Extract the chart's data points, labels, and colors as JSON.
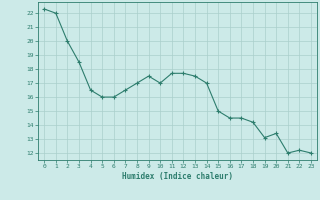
{
  "x": [
    0,
    1,
    2,
    3,
    4,
    5,
    6,
    7,
    8,
    9,
    10,
    11,
    12,
    13,
    14,
    15,
    16,
    17,
    18,
    19,
    20,
    21,
    22,
    23
  ],
  "y": [
    22.3,
    22.0,
    20.0,
    18.5,
    16.5,
    16.0,
    16.0,
    16.5,
    17.0,
    17.5,
    17.0,
    17.7,
    17.7,
    17.5,
    17.0,
    15.0,
    14.5,
    14.5,
    14.2,
    13.1,
    13.4,
    12.0,
    12.2,
    12.0
  ],
  "line_color": "#2d7d6d",
  "marker": "+",
  "marker_size": 3,
  "bg_color": "#cceae8",
  "grid_color": "#aacfcc",
  "xlabel": "Humidex (Indice chaleur)",
  "xlim": [
    -0.5,
    23.5
  ],
  "ylim": [
    11.5,
    22.8
  ],
  "yticks": [
    12,
    13,
    14,
    15,
    16,
    17,
    18,
    19,
    20,
    21,
    22
  ],
  "xticks": [
    0,
    1,
    2,
    3,
    4,
    5,
    6,
    7,
    8,
    9,
    10,
    11,
    12,
    13,
    14,
    15,
    16,
    17,
    18,
    19,
    20,
    21,
    22,
    23
  ],
  "tick_color": "#2d7d6d",
  "label_color": "#2d7d6d",
  "spine_color": "#2d7d6d"
}
